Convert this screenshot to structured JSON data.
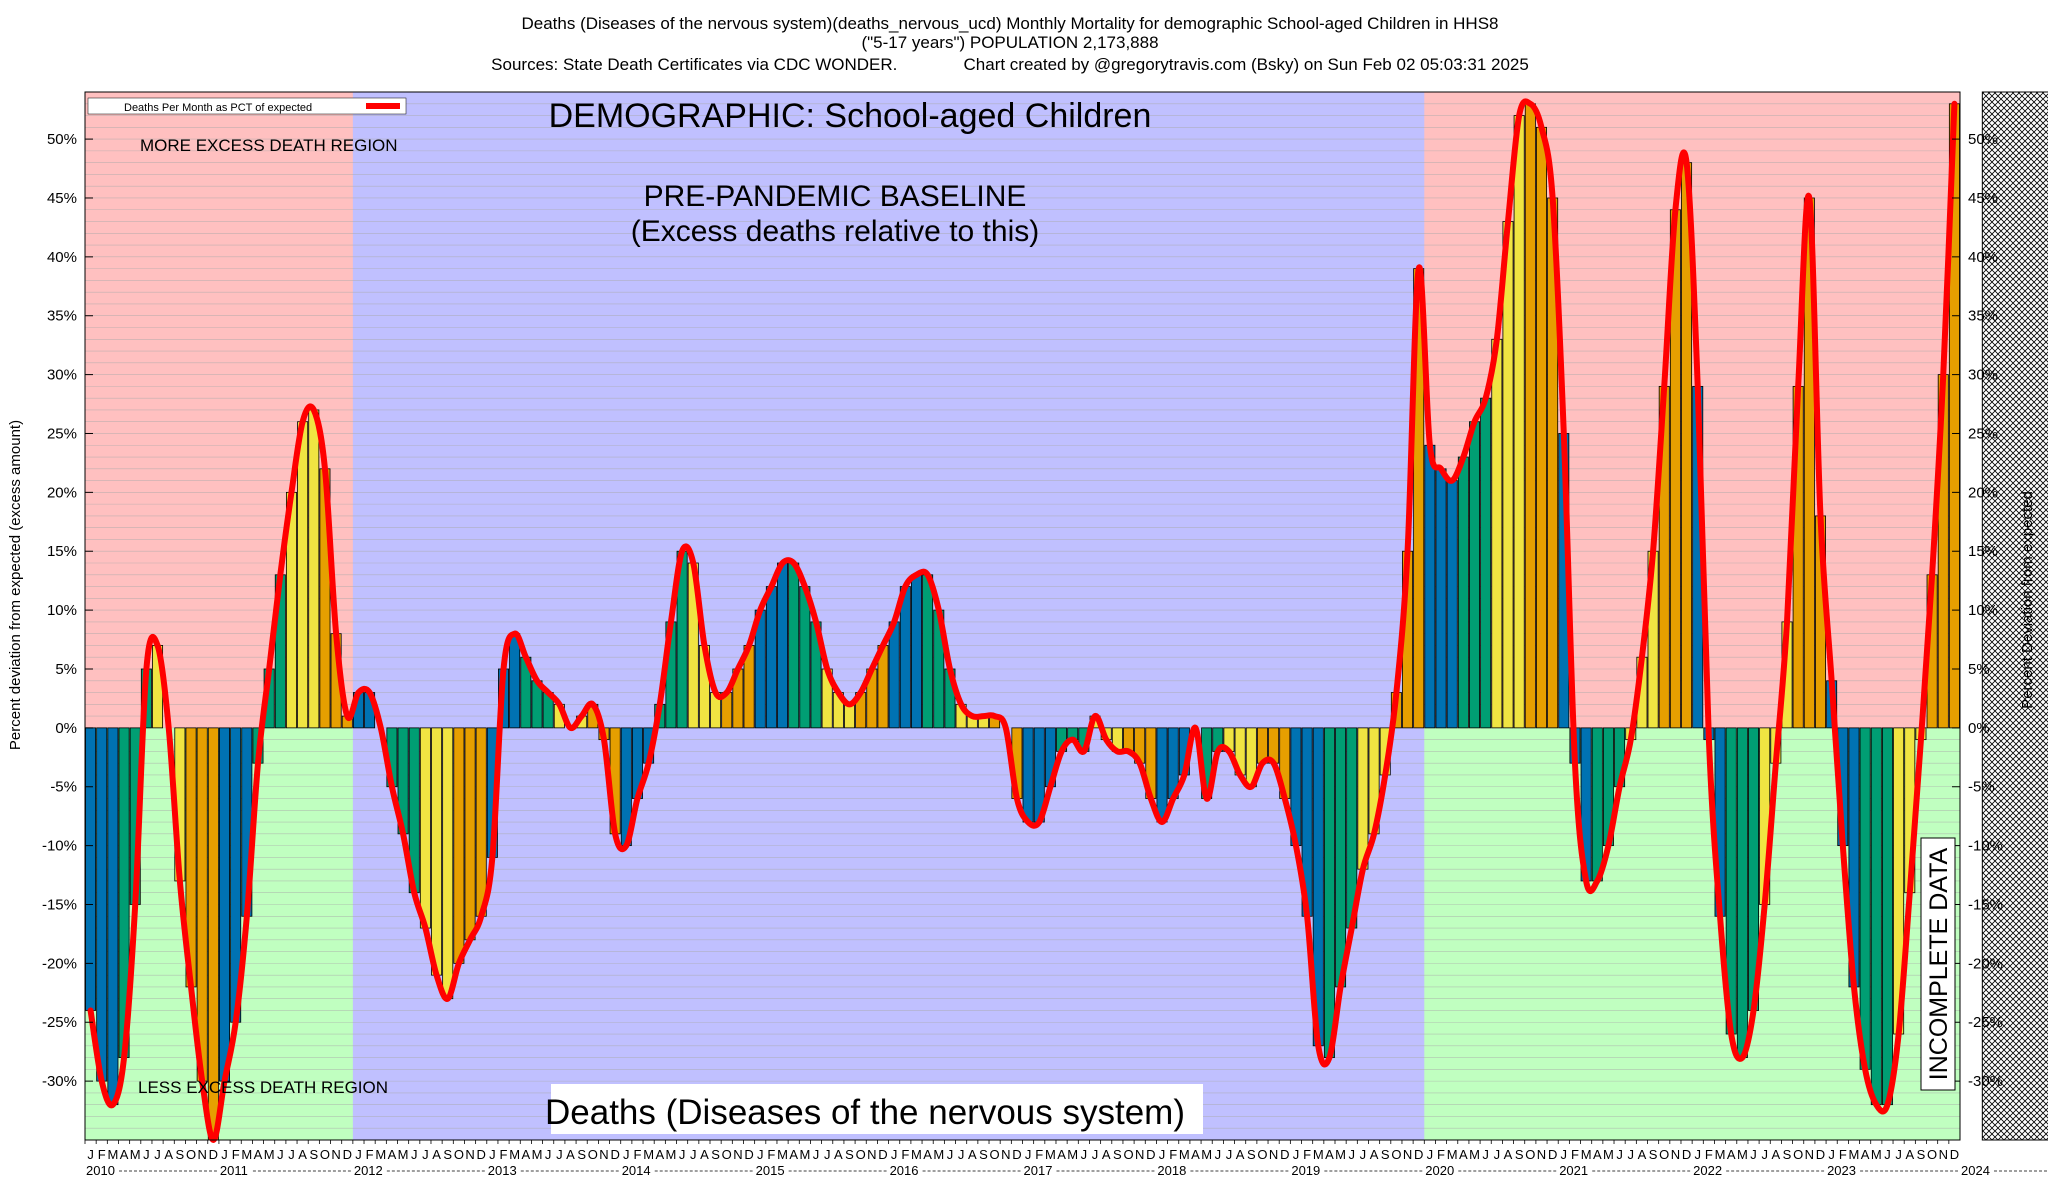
{
  "title_lines": [
    "Deaths (Diseases of the nervous system)(deaths_nervous_ucd) Monthly Mortality for demographic School-aged Children in HHS8",
    "(\"5-17 years\") POPULATION 2,173,888",
    "Sources: State Death Certificates via CDC WONDER.              Chart created by @gregorytravis.com (Bsky) on Sun Feb 02 05:03:31 2025"
  ],
  "legend_label": "Deaths Per Month as PCT of expected",
  "annotations": {
    "demographic": "DEMOGRAPHIC: School-aged Children",
    "baseline_line1": "PRE-PANDEMIC BASELINE",
    "baseline_line2": "(Excess deaths relative to this)",
    "more_region": "MORE EXCESS DEATH REGION",
    "less_region": "LESS EXCESS DEATH REGION",
    "bottom_title": "Deaths (Diseases of the nervous system)",
    "incomplete": "INCOMPLETE DATA"
  },
  "chart_data": {
    "type": "bar",
    "ylabel_left": "Percent deviation from expected (excess amount)",
    "ylabel_right": "Percent Deviation from expected",
    "ylim": [
      -35,
      54
    ],
    "yticks": [
      50,
      45,
      40,
      35,
      30,
      25,
      20,
      15,
      10,
      5,
      0,
      -5,
      -10,
      -15,
      -20,
      -25,
      -30
    ],
    "ytick_labels": [
      "50%",
      "45%",
      "40%",
      "35%",
      "30%",
      "25%",
      "20%",
      "15%",
      "10%",
      "5%",
      "0%",
      "-5%",
      "-10%",
      "-15%",
      "-20%",
      "-25%",
      "-30%"
    ],
    "month_letters": [
      "J",
      "F",
      "M",
      "A",
      "M",
      "J",
      "J",
      "A",
      "S",
      "O",
      "N",
      "D"
    ],
    "years": [
      "2010",
      "2011",
      "2012",
      "2013",
      "2014",
      "2015",
      "2016",
      "2017",
      "2018",
      "2019",
      "2020",
      "2021",
      "2022",
      "2023",
      "2024"
    ],
    "baseline_period": {
      "start": "2012-01",
      "end": "2019-12"
    },
    "incomplete_period": {
      "start": "2024-03",
      "end": "2024-12"
    },
    "colors": {
      "more_region": "#ffc0c0",
      "less_region": "#c0ffc0",
      "baseline": "#c0c0ff",
      "line": "#ff0000",
      "bar_blue": "#0072b2",
      "bar_green": "#009e73",
      "bar_yellow": "#f0e442",
      "bar_orange": "#e69f00"
    },
    "series": [
      {
        "name": "Deaths Per Month as PCT of expected",
        "values": [
          -24,
          -30,
          -32,
          -28,
          -15,
          5,
          7,
          0,
          -13,
          -22,
          -30,
          -35,
          -30,
          -25,
          -16,
          -3,
          5,
          13,
          20,
          26,
          27,
          22,
          8,
          1,
          3,
          3,
          0,
          -5,
          -9,
          -14,
          -17,
          -21,
          -23,
          -20,
          -18,
          -16,
          -11,
          5,
          8,
          6,
          4,
          3,
          2,
          0,
          1,
          2,
          -1,
          -9,
          -10,
          -6,
          -3,
          2,
          9,
          15,
          14,
          7,
          3,
          3,
          5,
          7,
          10,
          12,
          14,
          14,
          12,
          9,
          5,
          3,
          2,
          3,
          5,
          7,
          9,
          12,
          13,
          13,
          10,
          5,
          2,
          1,
          1,
          1,
          0,
          -6,
          -8,
          -8,
          -5,
          -2,
          -1,
          -2,
          1,
          -1,
          -2,
          -2,
          -3,
          -6,
          -8,
          -6,
          -4,
          0,
          -6,
          -2,
          -2,
          -4,
          -5,
          -3,
          -3,
          -6,
          -10,
          -16,
          -27,
          -28,
          -22,
          -17,
          -12,
          -9,
          -4,
          3,
          15,
          39,
          24,
          22,
          21,
          23,
          26,
          28,
          33,
          43,
          52,
          53,
          51,
          45,
          25,
          -3,
          -13,
          -13,
          -10,
          -5,
          -1,
          6,
          15,
          29,
          44,
          48,
          29,
          -1,
          -16,
          -26,
          -28,
          -24,
          -15,
          -3,
          9,
          29,
          45,
          18,
          4,
          -10,
          -22,
          -29,
          -32,
          -32,
          -26,
          -14,
          -1,
          13,
          30,
          53
        ]
      }
    ]
  }
}
